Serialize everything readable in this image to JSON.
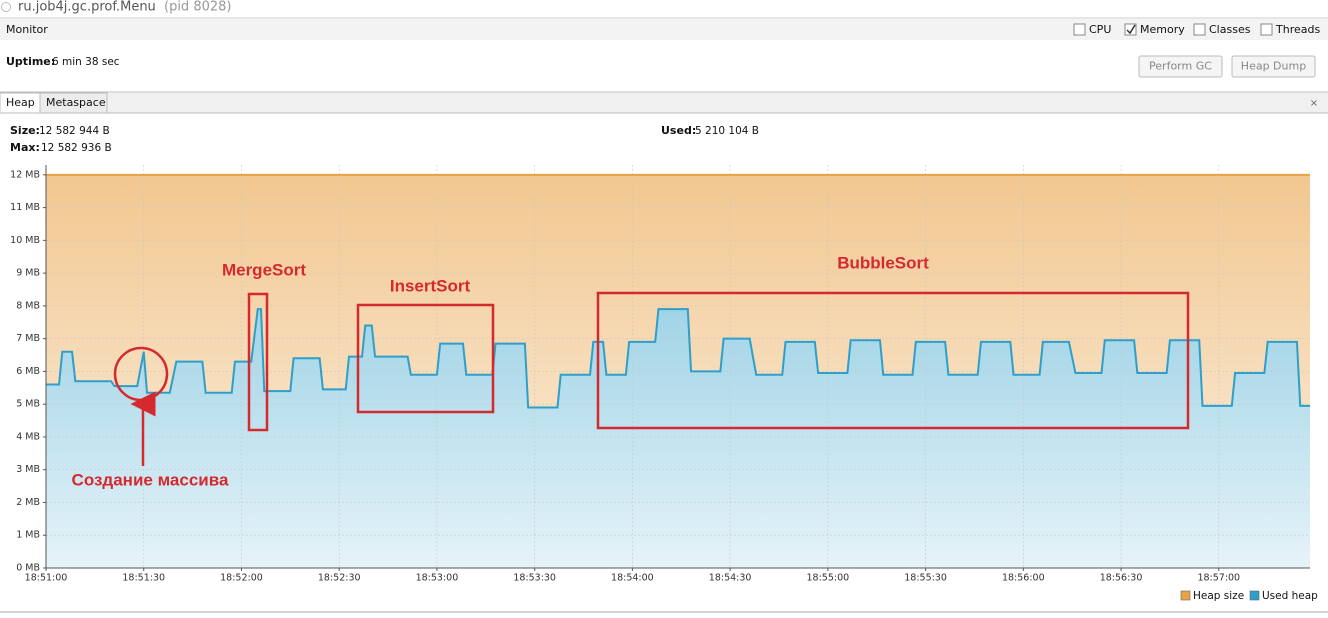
{
  "window": {
    "title": "ru.job4j.gc.prof.Menu",
    "pid": "(pid 8028)"
  },
  "monitor_tab": "Monitor",
  "checkboxes": [
    {
      "label": "CPU",
      "checked": false
    },
    {
      "label": "Memory",
      "checked": true
    },
    {
      "label": "Classes",
      "checked": false
    },
    {
      "label": "Threads",
      "checked": false
    }
  ],
  "uptime": {
    "label": "Uptime:",
    "value": "6 min 38 sec"
  },
  "buttons": [
    "Perform GC",
    "Heap Dump"
  ],
  "tabs": [
    "Heap",
    "Metaspace"
  ],
  "heap_info": {
    "size_label": "Size:",
    "size": "12 582 944 B",
    "max_label": "Max:",
    "max": "12 582 936 B",
    "used_label": "Used:",
    "used": "5 210 104 B"
  },
  "chart_data": {
    "type": "area",
    "xlim": [
      "18:51:00",
      "18:57:28"
    ],
    "xticks": [
      "18:51:00",
      "18:51:30",
      "18:52:00",
      "18:52:30",
      "18:53:00",
      "18:53:30",
      "18:54:00",
      "18:54:30",
      "18:55:00",
      "18:55:30",
      "18:56:00",
      "18:56:30",
      "18:57:00"
    ],
    "ylim": [
      0,
      12.3
    ],
    "yticks": [
      {
        "value": 0,
        "label": "0 MB"
      },
      {
        "value": 1,
        "label": "1 MB"
      },
      {
        "value": 2,
        "label": "2 MB"
      },
      {
        "value": 3,
        "label": "3 MB"
      },
      {
        "value": 4,
        "label": "4 MB"
      },
      {
        "value": 5,
        "label": "5 MB"
      },
      {
        "value": 6,
        "label": "6 MB"
      },
      {
        "value": 7,
        "label": "7 MB"
      },
      {
        "value": 8,
        "label": "8 MB"
      },
      {
        "value": 9,
        "label": "9 MB"
      },
      {
        "value": 10,
        "label": "10 MB"
      },
      {
        "value": 11,
        "label": "11 MB"
      },
      {
        "value": 12,
        "label": "12 MB"
      }
    ],
    "grid": true,
    "legend": "bottom-right",
    "series": [
      {
        "name": "Heap size",
        "color": "#e9a246",
        "x": [
          "18:51:00",
          "18:57:28"
        ],
        "values": [
          12,
          12
        ]
      },
      {
        "name": "Used heap",
        "color": "#2e9fc9",
        "x": [
          "18:51:00",
          "18:51:04",
          "18:51:05",
          "18:51:08",
          "18:51:09",
          "18:51:20",
          "18:51:21",
          "18:51:28",
          "18:51:30",
          "18:51:31",
          "18:51:38",
          "18:51:40",
          "18:51:48",
          "18:51:49",
          "18:51:57",
          "18:51:58",
          "18:52:03",
          "18:52:05",
          "18:52:06",
          "18:52:07",
          "18:52:15",
          "18:52:16",
          "18:52:24",
          "18:52:25",
          "18:52:32",
          "18:52:33",
          "18:52:37",
          "18:52:38",
          "18:52:40",
          "18:52:41",
          "18:52:51",
          "18:52:52",
          "18:53:00",
          "18:53:01",
          "18:53:08",
          "18:53:09",
          "18:53:17",
          "18:53:18",
          "18:53:27",
          "18:53:28",
          "18:53:37",
          "18:53:38",
          "18:53:47",
          "18:53:48",
          "18:53:51",
          "18:53:52",
          "18:53:58",
          "18:53:59",
          "18:54:07",
          "18:54:08",
          "18:54:17",
          "18:54:18",
          "18:54:27",
          "18:54:28",
          "18:54:36",
          "18:54:38",
          "18:54:46",
          "18:54:47",
          "18:54:56",
          "18:54:57",
          "18:55:06",
          "18:55:07",
          "18:55:16",
          "18:55:17",
          "18:55:26",
          "18:55:27",
          "18:55:36",
          "18:55:37",
          "18:55:46",
          "18:55:47",
          "18:55:56",
          "18:55:57",
          "18:56:05",
          "18:56:06",
          "18:56:14",
          "18:56:16",
          "18:56:24",
          "18:56:25",
          "18:56:34",
          "18:56:35",
          "18:56:44",
          "18:56:45",
          "18:56:54",
          "18:56:55",
          "18:57:04",
          "18:57:05",
          "18:57:14",
          "18:57:15",
          "18:57:24",
          "18:57:25",
          "18:57:28"
        ],
        "values": [
          5.6,
          5.6,
          6.6,
          6.6,
          5.7,
          5.7,
          5.55,
          5.55,
          6.6,
          5.35,
          5.35,
          6.3,
          6.3,
          5.35,
          5.35,
          6.3,
          6.3,
          7.9,
          7.9,
          5.4,
          5.4,
          6.4,
          6.4,
          5.45,
          5.45,
          6.45,
          6.45,
          7.4,
          7.4,
          6.45,
          6.45,
          5.9,
          5.9,
          6.85,
          6.85,
          5.9,
          5.9,
          6.85,
          6.85,
          4.9,
          4.9,
          5.9,
          5.9,
          6.9,
          6.9,
          5.9,
          5.9,
          6.9,
          6.9,
          7.9,
          7.9,
          6.0,
          6.0,
          7.0,
          7.0,
          5.9,
          5.9,
          6.9,
          6.9,
          5.95,
          5.95,
          6.95,
          6.95,
          5.9,
          5.9,
          6.9,
          6.9,
          5.9,
          5.9,
          6.9,
          6.9,
          5.9,
          5.9,
          6.9,
          6.9,
          5.95,
          5.95,
          6.95,
          6.95,
          5.95,
          5.95,
          6.95,
          6.95,
          4.95,
          4.95,
          5.95,
          5.95,
          6.9,
          6.9,
          4.95,
          4.95
        ]
      }
    ],
    "annotations": [
      "MergeSort",
      "InsertSort",
      "BubbleSort",
      "Создание массива"
    ]
  }
}
